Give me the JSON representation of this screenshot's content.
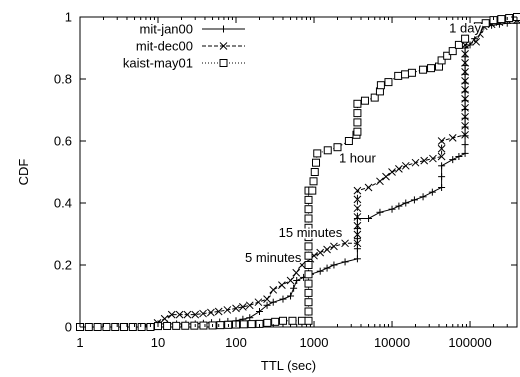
{
  "chart_data": {
    "type": "line",
    "xlabel": "TTL (sec)",
    "ylabel": "CDF",
    "xscale": "log",
    "xlim": [
      1,
      400000
    ],
    "ylim": [
      0,
      1
    ],
    "xticks": [
      1,
      10,
      100,
      1000,
      10000,
      100000
    ],
    "xtick_labels": [
      "1",
      "10",
      "100",
      "1000",
      "10000",
      "100000"
    ],
    "yticks": [
      0,
      0.2,
      0.4,
      0.6,
      0.8,
      1
    ],
    "ytick_labels": [
      "0",
      "0.2",
      "0.4",
      "0.6",
      "0.8",
      "1"
    ],
    "grid": false,
    "legend_position": "top-left",
    "series": [
      {
        "name": "mit-jan00",
        "marker": "plus",
        "dash": "solid",
        "points": [
          [
            1,
            0
          ],
          [
            8,
            0
          ],
          [
            10,
            0.01
          ],
          [
            30,
            0.01
          ],
          [
            100,
            0.02
          ],
          [
            150,
            0.03
          ],
          [
            200,
            0.05
          ],
          [
            250,
            0.07
          ],
          [
            300,
            0.08
          ],
          [
            400,
            0.09
          ],
          [
            500,
            0.1
          ],
          [
            600,
            0.15
          ],
          [
            900,
            0.17
          ],
          [
            1200,
            0.18
          ],
          [
            1800,
            0.2
          ],
          [
            2500,
            0.21
          ],
          [
            3600,
            0.22
          ],
          [
            3600,
            0.35
          ],
          [
            5000,
            0.35
          ],
          [
            7000,
            0.37
          ],
          [
            10000,
            0.38
          ],
          [
            15000,
            0.4
          ],
          [
            25000,
            0.42
          ],
          [
            43200,
            0.45
          ],
          [
            43200,
            0.52
          ],
          [
            60000,
            0.54
          ],
          [
            86400,
            0.56
          ],
          [
            86400,
            0.9
          ],
          [
            100000,
            0.91
          ],
          [
            150000,
            0.97
          ],
          [
            300000,
            0.98
          ],
          [
            400000,
            0.98
          ]
        ]
      },
      {
        "name": "mit-dec00",
        "marker": "cross",
        "dash": "dashed",
        "points": [
          [
            1,
            0
          ],
          [
            8,
            0
          ],
          [
            15,
            0.04
          ],
          [
            30,
            0.04
          ],
          [
            60,
            0.05
          ],
          [
            100,
            0.06
          ],
          [
            150,
            0.07
          ],
          [
            250,
            0.09
          ],
          [
            300,
            0.12
          ],
          [
            500,
            0.15
          ],
          [
            700,
            0.2
          ],
          [
            900,
            0.22
          ],
          [
            1000,
            0.23
          ],
          [
            1200,
            0.24
          ],
          [
            1800,
            0.26
          ],
          [
            2500,
            0.27
          ],
          [
            3600,
            0.27
          ],
          [
            3600,
            0.44
          ],
          [
            5000,
            0.45
          ],
          [
            7000,
            0.47
          ],
          [
            10000,
            0.5
          ],
          [
            15000,
            0.52
          ],
          [
            20000,
            0.53
          ],
          [
            43200,
            0.55
          ],
          [
            43200,
            0.6
          ],
          [
            60000,
            0.61
          ],
          [
            86400,
            0.62
          ],
          [
            86400,
            0.91
          ],
          [
            120000,
            0.92
          ],
          [
            150000,
            0.97
          ],
          [
            300000,
            0.99
          ],
          [
            400000,
            0.99
          ]
        ]
      },
      {
        "name": "kaist-may01",
        "marker": "square",
        "dash": "dotted",
        "points": [
          [
            1,
            0
          ],
          [
            8,
            0
          ],
          [
            10,
            0.003
          ],
          [
            50,
            0.005
          ],
          [
            100,
            0.008
          ],
          [
            200,
            0.01
          ],
          [
            400,
            0.02
          ],
          [
            700,
            0.02
          ],
          [
            850,
            0.02
          ],
          [
            850,
            0.44
          ],
          [
            950,
            0.44
          ],
          [
            1100,
            0.56
          ],
          [
            1500,
            0.57
          ],
          [
            2000,
            0.58
          ],
          [
            2800,
            0.6
          ],
          [
            3500,
            0.62
          ],
          [
            3600,
            0.63
          ],
          [
            3600,
            0.72
          ],
          [
            4500,
            0.73
          ],
          [
            6000,
            0.74
          ],
          [
            7000,
            0.76
          ],
          [
            7200,
            0.78
          ],
          [
            9000,
            0.79
          ],
          [
            12000,
            0.81
          ],
          [
            18000,
            0.82
          ],
          [
            25000,
            0.83
          ],
          [
            40000,
            0.84
          ],
          [
            43200,
            0.86
          ],
          [
            60000,
            0.89
          ],
          [
            86400,
            0.93
          ],
          [
            100000,
            0.96
          ],
          [
            200000,
            0.99
          ],
          [
            400000,
            1.0
          ]
        ]
      }
    ],
    "annotations": [
      {
        "text": "5 minutes",
        "x": 300,
        "y": 0.21
      },
      {
        "text": "15 minutes",
        "x": 900,
        "y": 0.29
      },
      {
        "text": "1 hour",
        "x": 3600,
        "y": 0.53
      },
      {
        "text": "1 day",
        "x": 86400,
        "y": 0.95
      }
    ]
  }
}
